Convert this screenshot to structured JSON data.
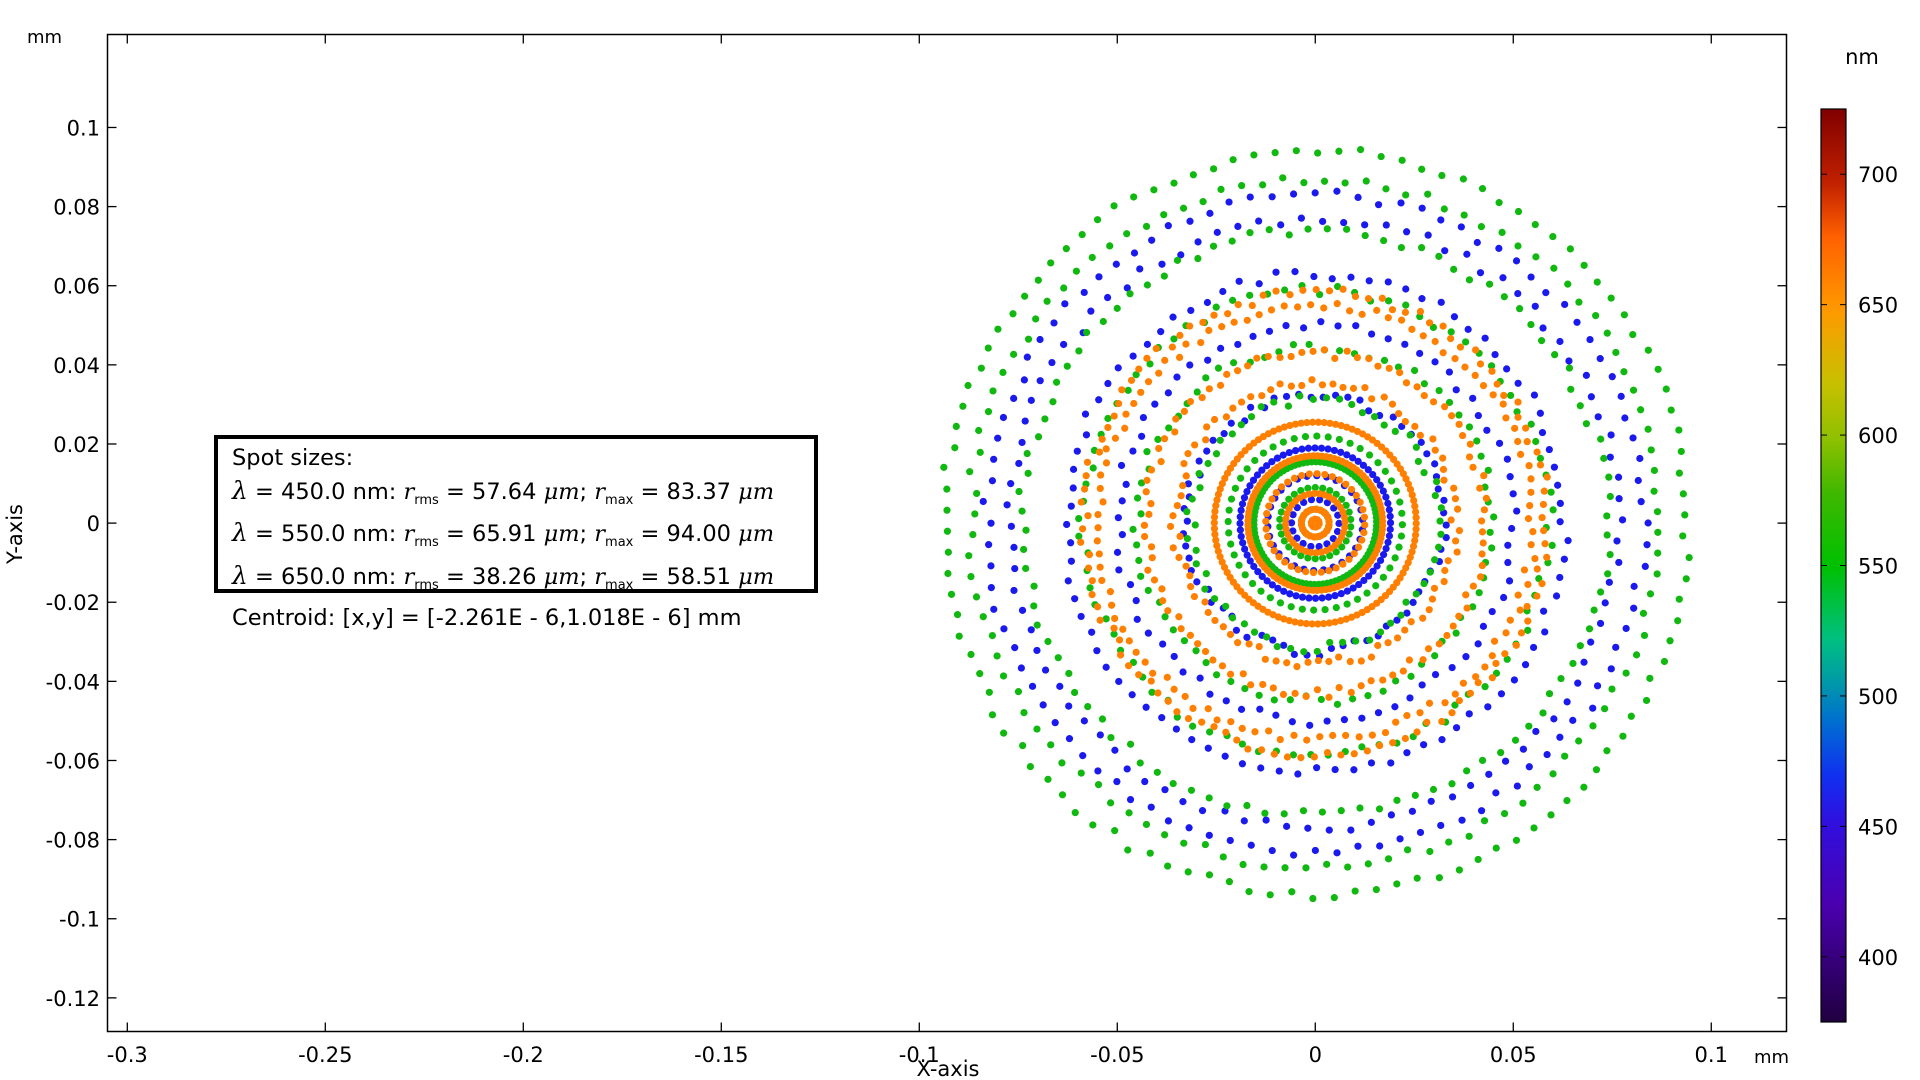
{
  "chart_data": {
    "type": "scatter",
    "title": "",
    "xlabel": "X-axis",
    "ylabel": "Y-axis",
    "x_unit": "mm",
    "y_unit": "mm",
    "xlim": [
      -0.305,
      0.119
    ],
    "ylim": [
      -0.1285,
      0.1235
    ],
    "grid": false,
    "x_ticks": [
      "-0.3",
      "-0.25",
      "-0.2",
      "-0.15",
      "-0.1",
      "-0.05",
      "0",
      "0.05",
      "0.1"
    ],
    "x_tick_values": [
      -0.3,
      -0.25,
      -0.2,
      -0.15,
      -0.1,
      -0.05,
      0,
      0.05,
      0.1
    ],
    "y_ticks": [
      "0.1",
      "0.08",
      "0.06",
      "0.04",
      "0.02",
      "0",
      "-0.02",
      "-0.04",
      "-0.06",
      "-0.08",
      "-0.1",
      "-0.12"
    ],
    "y_tick_values": [
      0.1,
      0.08,
      0.06,
      0.04,
      0.02,
      0,
      -0.02,
      -0.04,
      -0.06,
      -0.08,
      -0.1,
      -0.12
    ],
    "colorbar": {
      "unit": "nm",
      "range": [
        375,
        725
      ],
      "ticks": [
        "400",
        "450",
        "500",
        "550",
        "600",
        "650",
        "700"
      ],
      "tick_values": [
        400,
        450,
        500,
        550,
        600,
        650,
        700
      ]
    },
    "series": [
      {
        "wavelength_nm": 450,
        "color": "#1a1aee",
        "rings": [
          {
            "r": 0.083,
            "n": 96
          },
          {
            "r": 0.077,
            "n": 90
          },
          {
            "r": 0.063,
            "n": 84
          },
          {
            "r": 0.05,
            "n": 72
          },
          {
            "r": 0.0325,
            "n": 66
          },
          {
            "r": 0.019,
            "n": 72
          },
          {
            "r": 0.012,
            "n": 30
          },
          {
            "r": 0.006,
            "n": 18
          }
        ]
      },
      {
        "wavelength_nm": 550,
        "color": "#10b810",
        "rings": [
          {
            "r": 0.094,
            "n": 110
          },
          {
            "r": 0.087,
            "n": 104
          },
          {
            "r": 0.074,
            "n": 96
          },
          {
            "r": 0.059,
            "n": 84
          },
          {
            "r": 0.045,
            "n": 72
          },
          {
            "r": 0.0315,
            "n": 60
          },
          {
            "r": 0.022,
            "n": 48
          },
          {
            "r": 0.0155,
            "n": 90
          },
          {
            "r": 0.009,
            "n": 30
          },
          {
            "r": 0.0035,
            "n": 18
          }
        ]
      },
      {
        "wavelength_nm": 650,
        "color": "#ff8000",
        "rings": [
          {
            "r": 0.0585,
            "n": 110
          },
          {
            "r": 0.055,
            "n": 104
          },
          {
            "r": 0.043,
            "n": 96
          },
          {
            "r": 0.0355,
            "n": 84
          },
          {
            "r": 0.0255,
            "n": 110
          },
          {
            "r": 0.017,
            "n": 100
          },
          {
            "r": 0.0125,
            "n": 40
          },
          {
            "r": 0.0075,
            "n": 36
          },
          {
            "r": 0.0035,
            "n": 24
          },
          {
            "r": 0.001,
            "n": 10
          }
        ]
      }
    ],
    "legend": {
      "title": "Spot sizes:",
      "lambda": "λ",
      "rms_sub": "rms",
      "max_sub": "max",
      "r": "r",
      "um": "μm",
      "lines": [
        {
          "wl": " = 450.0 nm: ",
          "rrms": "57.64",
          "rmax": "83.37"
        },
        {
          "wl": " = 550.0 nm: ",
          "rrms": "65.91",
          "rmax": "94.00"
        },
        {
          "wl": " = 650.0 nm: ",
          "rrms": "38.26",
          "rmax": "58.51"
        }
      ],
      "centroid_label": "Centroid: ",
      "centroid_value": "[x,y] = [-2.261E - 6,1.018E - 6] mm"
    }
  }
}
